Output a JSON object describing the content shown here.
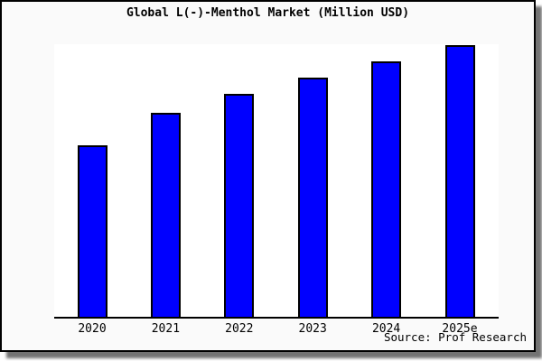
{
  "page": {
    "title": "Global L(-)-Menthol Market (Million USD)",
    "source": "Source: Prof Research"
  },
  "colors": {
    "bar_fill": "#0000ff",
    "bar_edge": "#000000",
    "frame_background": "#fafafa",
    "plot_background": "#ffffff",
    "frame_border": "#000000",
    "text": "#000000"
  },
  "chart_data": {
    "type": "bar",
    "title": "Global L(-)-Menthol Market (Million USD)",
    "categories": [
      "2020",
      "2021",
      "2022",
      "2023",
      "2024",
      "2025e"
    ],
    "values": [
      63,
      75,
      82,
      88,
      94,
      100
    ],
    "values_note": "No y-axis or data labels shown; values are relative bar heights with tallest bar (2025e) = 100",
    "xlabel": "",
    "ylabel": "",
    "ylim": [
      0,
      100
    ],
    "grid": false,
    "legend": "none",
    "source": "Source: Prof Research"
  }
}
